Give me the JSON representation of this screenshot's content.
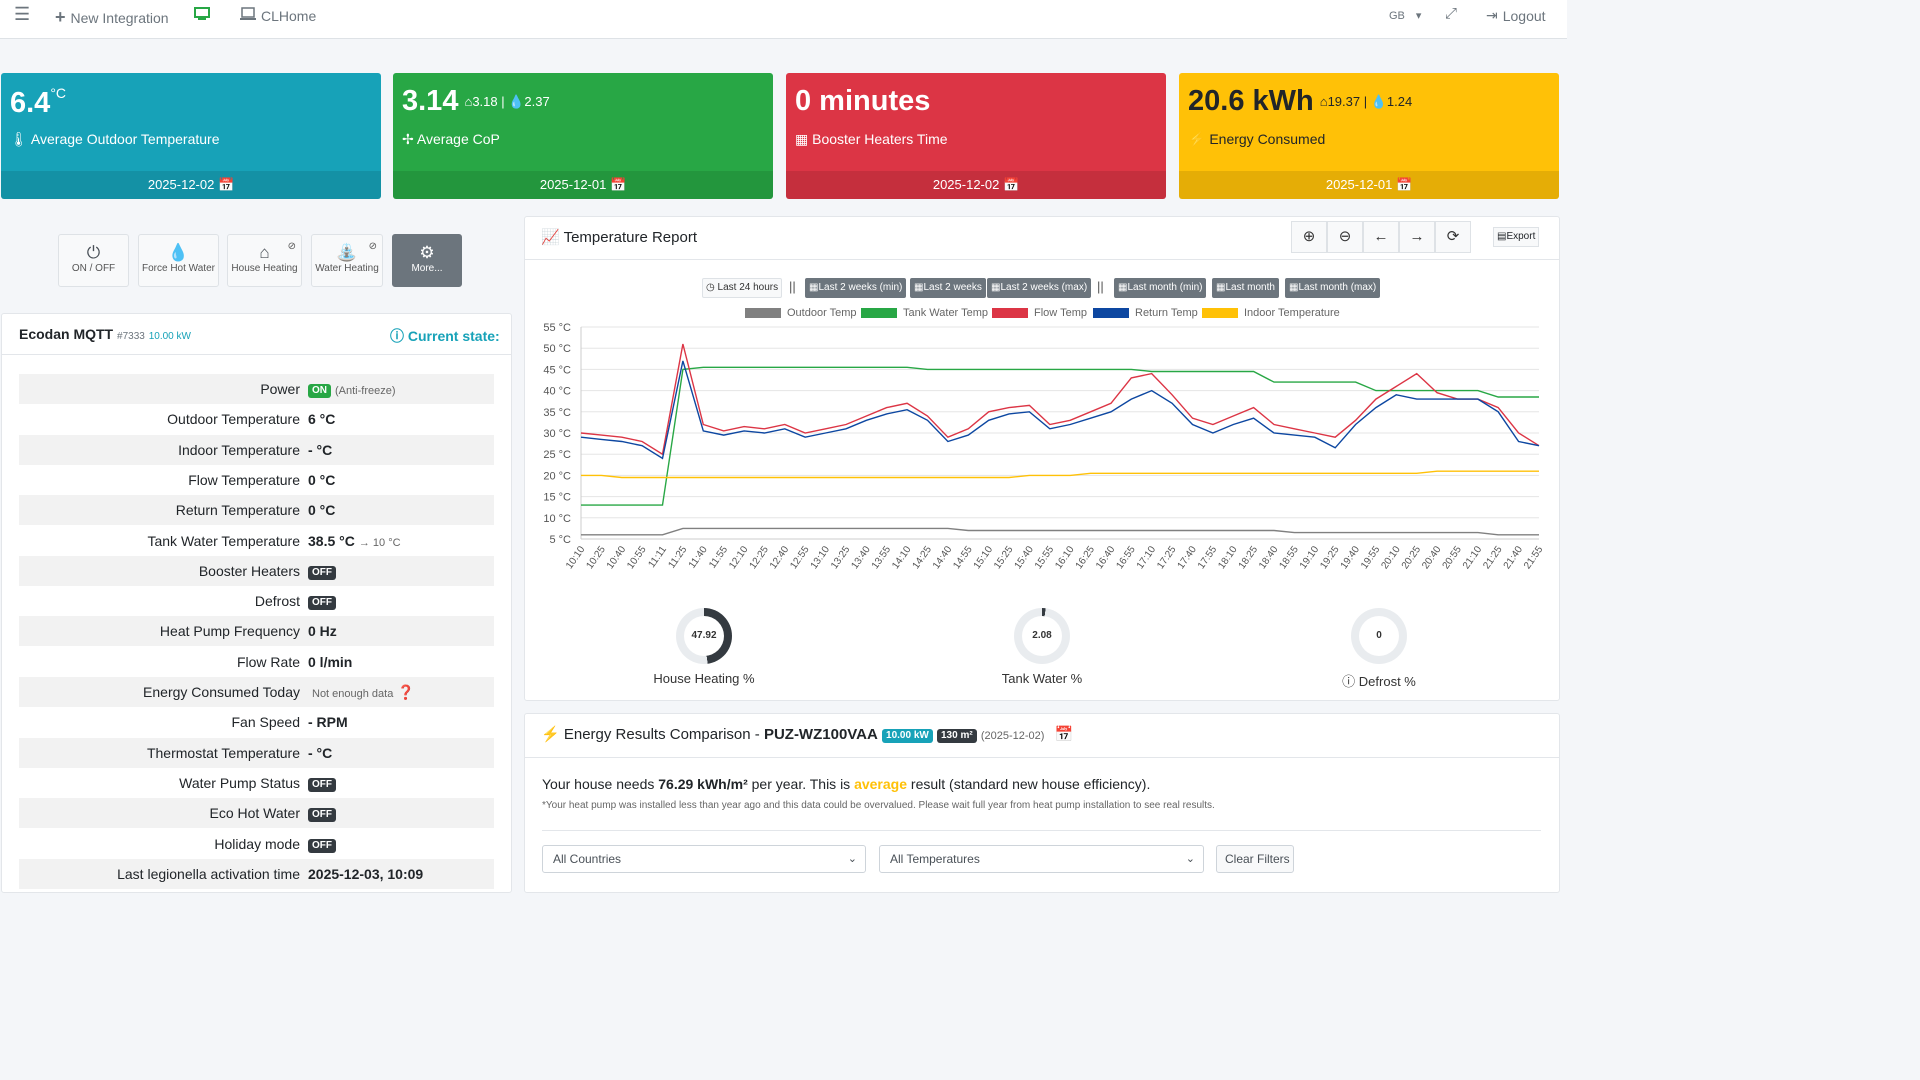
{
  "topbar": {
    "menu_icon": "hamburger-icon",
    "new_integration": "New Integration",
    "clhome": "CLHome",
    "lang": "GB",
    "logout": "Logout"
  },
  "cards": [
    {
      "value": "6.4",
      "unit": "°C",
      "label": "Average Outdoor Temperature",
      "date": "2025-12-02",
      "color": "#17a2b8"
    },
    {
      "value": "3.14",
      "sub_house": "3.18",
      "sub_water": "2.37",
      "label": "Average CoP",
      "date": "2025-12-01",
      "color": "#28a745"
    },
    {
      "value": "0 minutes",
      "label": "Booster Heaters Time",
      "date": "2025-12-02",
      "color": "#dc3545"
    },
    {
      "value": "20.6 kWh",
      "sub_house": "19.37",
      "sub_water": "1.24",
      "label": "Energy Consumed",
      "date": "2025-12-01",
      "color": "#ffc107"
    }
  ],
  "quick_buttons": [
    "ON / OFF",
    "Force Hot Water",
    "House Heating",
    "Water Heating",
    "More..."
  ],
  "device": {
    "name": "Ecodan MQTT",
    "id": "#7333",
    "power_kw": "10.00 kW",
    "state_link": "Current state:"
  },
  "state_rows": [
    {
      "key": "Power",
      "value": "ON",
      "note": "(Anti-freeze)"
    },
    {
      "key": "Outdoor Temperature",
      "value": "6 °C"
    },
    {
      "key": "Indoor Temperature",
      "value": "- °C"
    },
    {
      "key": "Flow Temperature",
      "value": "0 °C"
    },
    {
      "key": "Return Temperature",
      "value": "0 °C"
    },
    {
      "key": "Tank Water Temperature",
      "value": "38.5 °C",
      "note": "→ 10 °C"
    },
    {
      "key": "Booster Heaters",
      "value": "OFF"
    },
    {
      "key": "Defrost",
      "value": "OFF"
    },
    {
      "key": "Heat Pump Frequency",
      "value": "0 Hz"
    },
    {
      "key": "Flow Rate",
      "value": "0 l/min"
    },
    {
      "key": "Energy Consumed Today",
      "value": "",
      "note": "Not enough data"
    },
    {
      "key": "Fan Speed",
      "value": "- RPM"
    },
    {
      "key": "Thermostat Temperature",
      "value": "- °C"
    },
    {
      "key": "Water Pump Status",
      "value": "OFF"
    },
    {
      "key": "Eco Hot Water",
      "value": "OFF"
    },
    {
      "key": "Holiday mode",
      "value": "OFF"
    },
    {
      "key": "Last legionella activation time",
      "value": "2025-12-03, 10:09"
    }
  ],
  "report": {
    "title": "Temperature Report",
    "export": "Export",
    "ranges": [
      "Last 24 hours",
      "Last 2 weeks (min)",
      "Last 2 weeks",
      "Last 2 weeks (max)",
      "Last month (min)",
      "Last month",
      "Last month (max)"
    ],
    "separator": "||"
  },
  "chart_data": {
    "type": "line",
    "title": "",
    "xlabel": "",
    "ylabel": "",
    "ylim": [
      5,
      55
    ],
    "yticks": [
      "55 °C",
      "50 °C",
      "45 °C",
      "40 °C",
      "35 °C",
      "30 °C",
      "25 °C",
      "20 °C",
      "15 °C",
      "10 °C",
      "5 °C"
    ],
    "legend_position": "top",
    "grid": true,
    "x": [
      "10:10",
      "10:25",
      "10:40",
      "10:55",
      "11:11",
      "11:25",
      "11:40",
      "11:55",
      "12:10",
      "12:25",
      "12:40",
      "12:55",
      "13:10",
      "13:25",
      "13:40",
      "13:55",
      "14:10",
      "14:25",
      "14:40",
      "14:55",
      "15:10",
      "15:25",
      "15:40",
      "15:55",
      "16:10",
      "16:25",
      "16:40",
      "16:55",
      "17:10",
      "17:25",
      "17:40",
      "17:55",
      "18:10",
      "18:25",
      "18:40",
      "18:55",
      "19:10",
      "19:25",
      "19:40",
      "19:55",
      "20:10",
      "20:25",
      "20:40",
      "20:55",
      "21:10",
      "21:25",
      "21:40",
      "21:55"
    ],
    "series": [
      {
        "name": "Outdoor Temp",
        "color": "#808080",
        "values": [
          6,
          6,
          6,
          6,
          6,
          7.5,
          7.5,
          7.5,
          7.5,
          7.5,
          7.5,
          7.5,
          7.5,
          7.5,
          7.5,
          7.5,
          7.5,
          7.5,
          7.5,
          7,
          7,
          7,
          7,
          7,
          7,
          7,
          7,
          7,
          7,
          7,
          7,
          7,
          7,
          7,
          7,
          6.5,
          6.5,
          6.5,
          6.5,
          6.5,
          6.5,
          6.5,
          6.5,
          6.5,
          6.5,
          6,
          6,
          6
        ]
      },
      {
        "name": "Tank Water Temp",
        "color": "#28a745",
        "values": [
          13,
          13,
          13,
          13,
          13,
          45,
          45.5,
          45.5,
          45.5,
          45.5,
          45.5,
          45.5,
          45.5,
          45.5,
          45.5,
          45.5,
          45.5,
          45,
          45,
          45,
          45,
          45,
          45,
          45,
          45,
          45,
          45,
          45,
          44.5,
          44.5,
          44.5,
          44.5,
          44.5,
          44.5,
          42,
          42,
          42,
          42,
          42,
          40,
          40,
          40,
          40,
          40,
          40,
          38.5,
          38.5,
          38.5
        ]
      },
      {
        "name": "Flow Temp",
        "color": "#dc3545",
        "values": [
          30,
          29.5,
          29,
          28,
          25,
          51,
          32,
          30.5,
          31.5,
          31,
          32,
          30,
          31,
          32,
          34,
          36,
          37,
          34,
          29,
          31,
          35,
          36,
          36.5,
          32,
          33,
          35,
          37,
          43,
          44,
          39,
          33.5,
          32,
          34,
          36,
          32,
          31,
          30,
          29,
          33,
          38,
          41,
          44,
          39.5,
          38,
          38,
          36,
          30,
          27
        ]
      },
      {
        "name": "Return Temp",
        "color": "#0d47a1",
        "values": [
          29,
          28.5,
          28,
          27,
          24,
          47,
          30.5,
          29.5,
          30.5,
          30,
          31,
          29,
          30,
          31,
          33,
          34.5,
          35.5,
          33,
          28,
          29.5,
          33,
          34.5,
          35,
          31,
          32,
          33.5,
          35,
          38,
          40,
          37,
          32,
          30,
          32,
          33.5,
          30,
          29.5,
          29,
          26.5,
          32,
          36,
          39,
          38,
          38,
          38,
          38,
          35,
          28,
          27
        ]
      },
      {
        "name": "Indoor Temperature",
        "color": "#ffc107",
        "values": [
          20,
          20,
          19.5,
          19.5,
          19.5,
          19.5,
          19.5,
          19.5,
          19.5,
          19.5,
          19.5,
          19.5,
          19.5,
          19.5,
          19.5,
          19.5,
          19.5,
          19.5,
          19.5,
          19.5,
          19.5,
          19.5,
          20,
          20,
          20,
          20.5,
          20.5,
          20.5,
          20.5,
          20.5,
          20.5,
          20.5,
          20.5,
          20.5,
          20.5,
          20.5,
          20.5,
          20.5,
          20.5,
          20.5,
          20.5,
          20.5,
          21,
          21,
          21,
          21,
          21,
          21
        ]
      }
    ]
  },
  "gauges": [
    {
      "value": "47.92",
      "percent": 47.92,
      "label": "House Heating %"
    },
    {
      "value": "2.08",
      "percent": 2.08,
      "label": "Tank Water %"
    },
    {
      "value": "0",
      "percent": 0,
      "label": "Defrost %"
    }
  ],
  "energy": {
    "title": "Energy Results Comparison - ",
    "model": "PUZ-WZ100VAA",
    "power": "10.00 kW",
    "area": "130 m²",
    "date": "(2025-12-02)",
    "sentence_a": "Your house needs ",
    "needs": "76.29 kWh/m²",
    "sentence_b": " per year. This is ",
    "rating": "average",
    "sentence_c": " result (standard new house efficiency).",
    "disclaimer": "*Your heat pump was installed less than year ago and this data could be overvalued. Please wait full year from heat pump installation to see real results.",
    "country_filter": "All Countries",
    "temp_filter": "All Temperatures",
    "clear": "Clear Filters"
  }
}
